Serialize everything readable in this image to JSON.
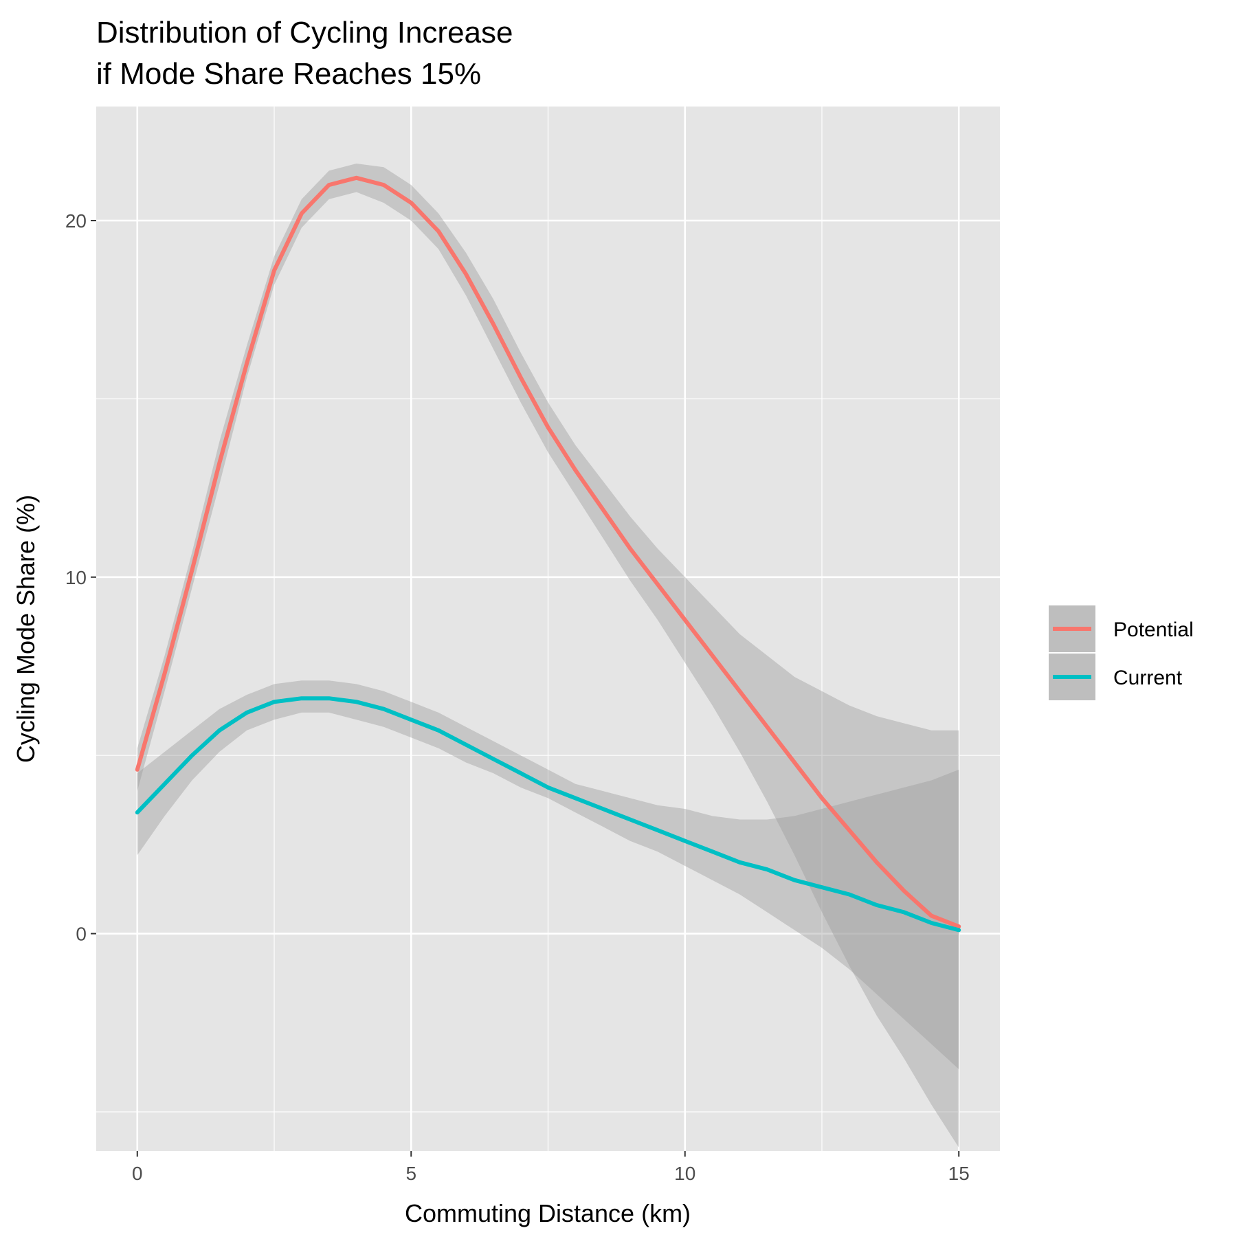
{
  "chart_data": {
    "type": "line",
    "title_lines": [
      "Distribution of Cycling Increase",
      "if Mode Share Reaches 15%"
    ],
    "xlabel": "Commuting Distance (km)",
    "ylabel": "Cycling Mode Share (%)",
    "xlim": [
      -0.75,
      15.75
    ],
    "ylim": [
      -6.1,
      23.2
    ],
    "x_ticks": [
      0,
      5,
      10,
      15
    ],
    "x_minor": [
      2.5,
      7.5,
      12.5
    ],
    "y_ticks": [
      0,
      10,
      20
    ],
    "y_minor": [
      -5,
      5,
      15
    ],
    "grid": true,
    "legend_position": "right",
    "series": [
      {
        "name": "Potential",
        "color": "#F8766D",
        "x": [
          0,
          0.5,
          1,
          1.5,
          2,
          2.5,
          3,
          3.5,
          4,
          4.5,
          5,
          5.5,
          6,
          6.5,
          7,
          7.5,
          8,
          8.5,
          9,
          9.5,
          10,
          10.5,
          11,
          11.5,
          12,
          12.5,
          13,
          13.5,
          14,
          14.5,
          15
        ],
        "y": [
          4.6,
          7.3,
          10.2,
          13.2,
          16.0,
          18.6,
          20.2,
          21.0,
          21.2,
          21.0,
          20.5,
          19.7,
          18.5,
          17.1,
          15.6,
          14.2,
          13.0,
          11.9,
          10.8,
          9.8,
          8.8,
          7.8,
          6.8,
          5.8,
          4.8,
          3.8,
          2.9,
          2.0,
          1.2,
          0.5,
          0.2
        ],
        "lower": [
          4.0,
          6.8,
          9.7,
          12.6,
          15.6,
          18.2,
          19.8,
          20.6,
          20.8,
          20.5,
          20.0,
          19.2,
          17.9,
          16.4,
          14.9,
          13.5,
          12.3,
          11.1,
          9.9,
          8.8,
          7.6,
          6.4,
          5.1,
          3.7,
          2.2,
          0.6,
          -0.9,
          -2.3,
          -3.5,
          -4.8,
          -6.0
        ],
        "upper": [
          5.2,
          7.8,
          10.7,
          13.8,
          16.5,
          19.0,
          20.6,
          21.4,
          21.6,
          21.5,
          21.0,
          20.2,
          19.1,
          17.8,
          16.3,
          14.9,
          13.7,
          12.7,
          11.7,
          10.8,
          10.0,
          9.2,
          8.4,
          7.8,
          7.2,
          6.8,
          6.4,
          6.1,
          5.9,
          5.7,
          5.7
        ]
      },
      {
        "name": "Current",
        "color": "#00BFC4",
        "x": [
          0,
          0.5,
          1,
          1.5,
          2,
          2.5,
          3,
          3.5,
          4,
          4.5,
          5,
          5.5,
          6,
          6.5,
          7,
          7.5,
          8,
          8.5,
          9,
          9.5,
          10,
          10.5,
          11,
          11.5,
          12,
          12.5,
          13,
          13.5,
          14,
          14.5,
          15
        ],
        "y": [
          3.4,
          4.2,
          5.0,
          5.7,
          6.2,
          6.5,
          6.6,
          6.6,
          6.5,
          6.3,
          6.0,
          5.7,
          5.3,
          4.9,
          4.5,
          4.1,
          3.8,
          3.5,
          3.2,
          2.9,
          2.6,
          2.3,
          2.0,
          1.8,
          1.5,
          1.3,
          1.1,
          0.8,
          0.6,
          0.3,
          0.1
        ],
        "lower": [
          2.2,
          3.3,
          4.3,
          5.1,
          5.7,
          6.0,
          6.2,
          6.2,
          6.0,
          5.8,
          5.5,
          5.2,
          4.8,
          4.5,
          4.1,
          3.8,
          3.4,
          3.0,
          2.6,
          2.3,
          1.9,
          1.5,
          1.1,
          0.6,
          0.1,
          -0.4,
          -1.0,
          -1.7,
          -2.4,
          -3.1,
          -3.8
        ],
        "upper": [
          4.5,
          5.1,
          5.7,
          6.3,
          6.7,
          7.0,
          7.1,
          7.1,
          7.0,
          6.8,
          6.5,
          6.2,
          5.8,
          5.4,
          5.0,
          4.6,
          4.2,
          4.0,
          3.8,
          3.6,
          3.5,
          3.3,
          3.2,
          3.2,
          3.3,
          3.5,
          3.7,
          3.9,
          4.1,
          4.3,
          4.6
        ]
      }
    ]
  },
  "colors": {
    "panel_background": "#E5E5E5",
    "grid": "#FFFFFF",
    "ribbon": "#999999",
    "legend_key_background": "#BEBEBE"
  }
}
